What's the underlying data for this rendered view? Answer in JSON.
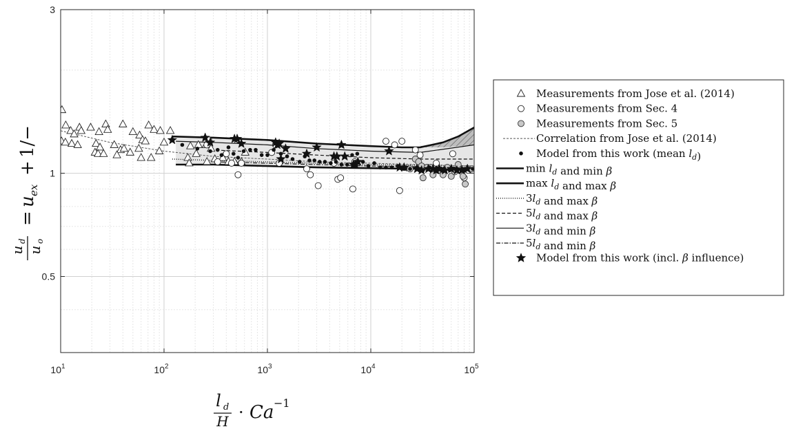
{
  "chart_data": {
    "type": "scatter",
    "x_scale": "log",
    "y_scale": "log",
    "xlim": [
      10,
      100000
    ],
    "ylim": [
      0.3,
      3
    ],
    "x_ticks": [
      {
        "value": 10,
        "base": "10",
        "exp": "1"
      },
      {
        "value": 100,
        "base": "10",
        "exp": "2"
      },
      {
        "value": 1000,
        "base": "10",
        "exp": "3"
      },
      {
        "value": 10000,
        "base": "10",
        "exp": "4"
      },
      {
        "value": 100000,
        "base": "10",
        "exp": "5"
      }
    ],
    "y_ticks": [
      {
        "value": 0.5,
        "label": "0.5"
      },
      {
        "value": 1,
        "label": "1"
      },
      {
        "value": 3,
        "label": "3"
      }
    ],
    "xlabel": "l_d/H · Ca^-1",
    "ylabel": "u_d/u_o = u_ex + 1/−",
    "grid": true,
    "legend_position": "right",
    "colors": {
      "dark": "#111111",
      "gray_marker": "#c8c8c8",
      "band": "#e6e6e6"
    },
    "band": {
      "x": [
        130,
        300,
        1000,
        3000,
        10000,
        20000,
        40000,
        70000,
        100000
      ],
      "upper": [
        1.27,
        1.26,
        1.24,
        1.21,
        1.19,
        1.18,
        1.19,
        1.21,
        1.23
      ],
      "lower": [
        1.06,
        1.06,
        1.05,
        1.04,
        1.03,
        1.03,
        1.03,
        1.03,
        1.03
      ]
    },
    "hatched": {
      "x": [
        30000,
        50000,
        70000,
        100000
      ],
      "upper": [
        1.2,
        1.23,
        1.28,
        1.36
      ],
      "lower": [
        1.19,
        1.19,
        1.2,
        1.21
      ]
    },
    "series": [
      {
        "name": "Measurements from Jose et al. (2014)",
        "kind": "scatter",
        "marker": "triangle",
        "points": [
          [
            10.3,
            1.53
          ],
          [
            11.2,
            1.38
          ],
          [
            12.5,
            1.33
          ],
          [
            13.5,
            1.3
          ],
          [
            15.2,
            1.36
          ],
          [
            15.8,
            1.33
          ],
          [
            10.2,
            1.24
          ],
          [
            11.1,
            1.23
          ],
          [
            12.8,
            1.22
          ],
          [
            14.6,
            1.21
          ],
          [
            19.5,
            1.36
          ],
          [
            23.5,
            1.32
          ],
          [
            27.3,
            1.39
          ],
          [
            28.5,
            1.34
          ],
          [
            40,
            1.39
          ],
          [
            33,
            1.21
          ],
          [
            38,
            1.17
          ],
          [
            41,
            1.18
          ],
          [
            22,
            1.22
          ],
          [
            24,
            1.19
          ],
          [
            21.5,
            1.15
          ],
          [
            23,
            1.14
          ],
          [
            26,
            1.14
          ],
          [
            35,
            1.13
          ],
          [
            47,
            1.15
          ],
          [
            58,
            1.29
          ],
          [
            62,
            1.25
          ],
          [
            66,
            1.24
          ],
          [
            57,
            1.18
          ],
          [
            50,
            1.32
          ],
          [
            71,
            1.38
          ],
          [
            80,
            1.34
          ],
          [
            92,
            1.33
          ],
          [
            115,
            1.33
          ],
          [
            60,
            1.11
          ],
          [
            75,
            1.11
          ],
          [
            90,
            1.16
          ],
          [
            100,
            1.23
          ],
          [
            170,
            1.11
          ],
          [
            180,
            1.2
          ],
          [
            215,
            1.21
          ],
          [
            255,
            1.21
          ],
          [
            285,
            1.18
          ],
          [
            175,
            1.07
          ],
          [
            205,
            1.14
          ],
          [
            260,
            1.08
          ],
          [
            310,
            1.1
          ],
          [
            370,
            1.11
          ],
          [
            420,
            1.08
          ],
          [
            480,
            1.08
          ],
          [
            560,
            1.08
          ],
          [
            610,
            1.15
          ]
        ]
      },
      {
        "name": "Measurements from Sec. 4",
        "kind": "scatter",
        "marker": "circle-open",
        "points": [
          [
            260,
            1.21
          ],
          [
            270,
            1.25
          ],
          [
            330,
            1.08
          ],
          [
            400,
            1.14
          ],
          [
            450,
            1.07
          ],
          [
            520,
            0.99
          ],
          [
            560,
            1.07
          ],
          [
            1100,
            1.15
          ],
          [
            1200,
            1.21
          ],
          [
            1300,
            1.07
          ],
          [
            2400,
            1.03
          ],
          [
            2600,
            0.99
          ],
          [
            3100,
            0.92
          ],
          [
            4400,
            1.07
          ],
          [
            4800,
            0.96
          ],
          [
            5100,
            0.97
          ],
          [
            6700,
            0.9
          ],
          [
            7000,
            1.08
          ],
          [
            14000,
            1.24
          ],
          [
            17000,
            1.21
          ],
          [
            19000,
            0.89
          ],
          [
            20000,
            1.24
          ],
          [
            27000,
            1.17
          ],
          [
            30000,
            1.13
          ],
          [
            43000,
            1.07
          ],
          [
            62000,
            1.14
          ],
          [
            80000,
            0.97
          ],
          [
            88000,
            1.02
          ]
        ]
      },
      {
        "name": "Measurements from Sec. 5",
        "kind": "scatter",
        "marker": "circle-gray",
        "points": [
          [
            24000,
            1.03
          ],
          [
            27000,
            1.1
          ],
          [
            29000,
            1.08
          ],
          [
            31000,
            1.05
          ],
          [
            32000,
            0.97
          ],
          [
            35000,
            1.04
          ],
          [
            38000,
            1.04
          ],
          [
            40000,
            0.99
          ],
          [
            45000,
            1.02
          ],
          [
            50000,
            0.99
          ],
          [
            55000,
            1.04
          ],
          [
            60000,
            0.98
          ],
          [
            65000,
            1.01
          ],
          [
            70000,
            1.06
          ],
          [
            78000,
            0.98
          ],
          [
            82000,
            0.93
          ],
          [
            95000,
            1.03
          ]
        ]
      },
      {
        "name": "Correlation from Jose et al. (2014)",
        "kind": "line",
        "style": "dashed-gray",
        "points": [
          [
            10,
            1.33
          ],
          [
            30,
            1.23
          ],
          [
            100,
            1.16
          ],
          [
            300,
            1.12
          ],
          [
            1000,
            1.1
          ],
          [
            3000,
            1.08
          ],
          [
            10000,
            1.07
          ],
          [
            30000,
            1.06
          ],
          [
            100000,
            1.05
          ]
        ]
      },
      {
        "name": "Model from this work (mean l_d)",
        "kind": "scatter",
        "marker": "dot",
        "points": [
          [
            150,
            1.21
          ],
          [
            210,
            1.18
          ],
          [
            280,
            1.16
          ],
          [
            330,
            1.17
          ],
          [
            360,
            1.13
          ],
          [
            420,
            1.19
          ],
          [
            470,
            1.14
          ],
          [
            520,
            1.11
          ],
          [
            590,
            1.16
          ],
          [
            680,
            1.17
          ],
          [
            770,
            1.17
          ],
          [
            880,
            1.13
          ],
          [
            1000,
            1.13
          ],
          [
            1150,
            1.17
          ],
          [
            1350,
            1.14
          ],
          [
            1550,
            1.12
          ],
          [
            1750,
            1.1
          ],
          [
            2050,
            1.08
          ],
          [
            2300,
            1.12
          ],
          [
            2550,
            1.09
          ],
          [
            2850,
            1.09
          ],
          [
            3200,
            1.08
          ],
          [
            3600,
            1.08
          ],
          [
            4100,
            1.07
          ],
          [
            4600,
            1.08
          ],
          [
            5200,
            1.06
          ],
          [
            5900,
            1.06
          ],
          [
            6600,
            1.13
          ],
          [
            7400,
            1.14
          ],
          [
            8400,
            1.08
          ],
          [
            9500,
            1.05
          ],
          [
            10800,
            1.07
          ],
          [
            12300,
            1.04
          ],
          [
            14000,
            1.04
          ],
          [
            16000,
            1.04
          ],
          [
            18300,
            1.05
          ],
          [
            21000,
            1.03
          ],
          [
            24000,
            1.03
          ],
          [
            28000,
            1.04
          ],
          [
            32000,
            1.02
          ],
          [
            37000,
            1.04
          ],
          [
            43000,
            1.03
          ],
          [
            50000,
            1.02
          ],
          [
            58000,
            1.02
          ],
          [
            68000,
            1.03
          ],
          [
            80000,
            1.02
          ],
          [
            97000,
            1.03
          ]
        ]
      },
      {
        "name": "min l_d and min β",
        "kind": "line",
        "style": "thick",
        "points": [
          [
            130,
            1.06
          ],
          [
            300,
            1.06
          ],
          [
            1000,
            1.05
          ],
          [
            3000,
            1.04
          ],
          [
            10000,
            1.035
          ],
          [
            30000,
            1.03
          ],
          [
            100000,
            1.03
          ]
        ]
      },
      {
        "name": "max l_d and max β",
        "kind": "line",
        "style": "thick",
        "points": [
          [
            120,
            1.28
          ],
          [
            300,
            1.27
          ],
          [
            1000,
            1.25
          ],
          [
            3000,
            1.22
          ],
          [
            10000,
            1.2
          ],
          [
            20000,
            1.19
          ],
          [
            30000,
            1.19
          ],
          [
            50000,
            1.23
          ],
          [
            70000,
            1.28
          ],
          [
            100000,
            1.36
          ]
        ]
      },
      {
        "name": "3l_d and max β",
        "kind": "line",
        "style": "dotted",
        "points": [
          [
            120,
            1.1
          ],
          [
            300,
            1.09
          ],
          [
            1000,
            1.08
          ],
          [
            3000,
            1.07
          ],
          [
            10000,
            1.06
          ],
          [
            30000,
            1.055
          ],
          [
            100000,
            1.05
          ]
        ]
      },
      {
        "name": "5l_d and max β",
        "kind": "line",
        "style": "dashed",
        "points": [
          [
            280,
            1.17
          ],
          [
            1000,
            1.15
          ],
          [
            3000,
            1.13
          ],
          [
            10000,
            1.11
          ],
          [
            30000,
            1.1
          ],
          [
            100000,
            1.1
          ]
        ]
      },
      {
        "name": "3l_d and min β",
        "kind": "line",
        "style": "thin",
        "points": [
          [
            130,
            1.24
          ],
          [
            300,
            1.23
          ],
          [
            1000,
            1.21
          ],
          [
            3000,
            1.18
          ],
          [
            10000,
            1.16
          ],
          [
            30000,
            1.15
          ],
          [
            100000,
            1.21
          ]
        ]
      },
      {
        "name": "5l_d and min β",
        "kind": "line",
        "style": "dashdot",
        "points": [
          [
            300,
            1.08
          ],
          [
            1000,
            1.07
          ],
          [
            3000,
            1.06
          ],
          [
            10000,
            1.05
          ],
          [
            30000,
            1.045
          ],
          [
            100000,
            1.04
          ]
        ]
      },
      {
        "name": "Model from this work (incl. β influence)",
        "kind": "scatter",
        "marker": "star",
        "points": [
          [
            120,
            1.25
          ],
          [
            250,
            1.27
          ],
          [
            280,
            1.23
          ],
          [
            480,
            1.26
          ],
          [
            510,
            1.26
          ],
          [
            560,
            1.22
          ],
          [
            1200,
            1.23
          ],
          [
            1250,
            1.21
          ],
          [
            1300,
            1.22
          ],
          [
            1350,
            1.1
          ],
          [
            1500,
            1.18
          ],
          [
            2400,
            1.14
          ],
          [
            3000,
            1.19
          ],
          [
            4400,
            1.12
          ],
          [
            4700,
            1.12
          ],
          [
            5200,
            1.21
          ],
          [
            5600,
            1.12
          ],
          [
            6800,
            1.06
          ],
          [
            7100,
            1.06
          ],
          [
            7500,
            1.08
          ],
          [
            15000,
            1.16
          ],
          [
            19000,
            1.04
          ],
          [
            21000,
            1.04
          ],
          [
            28000,
            1.03
          ],
          [
            31000,
            1.02
          ],
          [
            36000,
            1.03
          ],
          [
            40000,
            1.03
          ],
          [
            43000,
            1.02
          ],
          [
            46000,
            1.03
          ],
          [
            52000,
            1.02
          ],
          [
            60000,
            1.03
          ],
          [
            68000,
            1.02
          ],
          [
            76000,
            1.02
          ],
          [
            86000,
            1.03
          ]
        ]
      }
    ]
  }
}
